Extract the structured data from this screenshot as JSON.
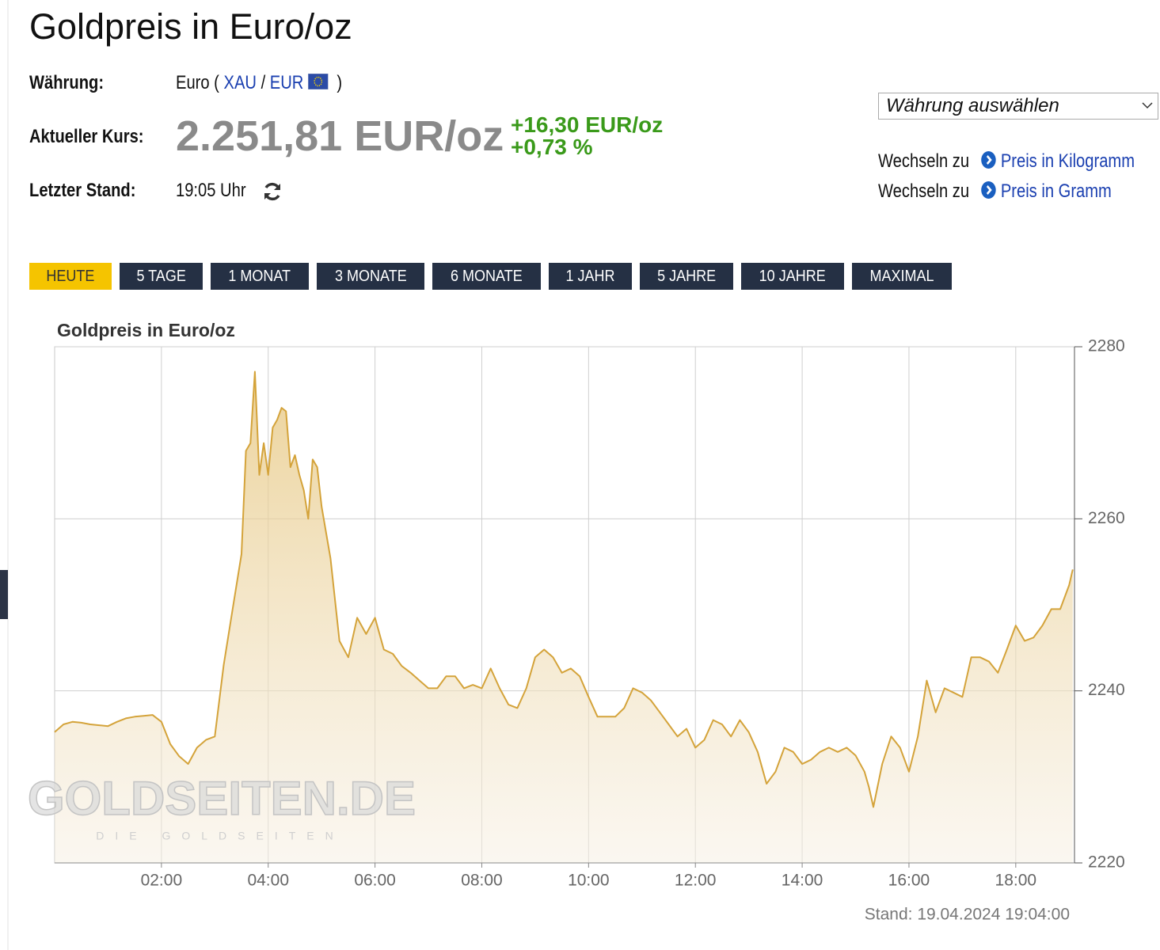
{
  "header": {
    "title": "Goldpreis in Euro/oz"
  },
  "info": {
    "currency_label": "Währung:",
    "currency": {
      "prefix": "Euro (",
      "xau": "XAU",
      "separator": "/",
      "eur": "EUR",
      "suffix": ")"
    },
    "price_label": "Aktueller Kurs:",
    "price": "2.251,81 EUR/oz",
    "change_abs": "+16,30 EUR/oz",
    "change_pct": "+0,73 %",
    "time_label": "Letzter Stand:",
    "time": "19:05 Uhr"
  },
  "currency_select": "Währung auswählen",
  "switch_links": [
    {
      "prefix": "Wechseln zu",
      "link": "Preis in Kilogramm"
    },
    {
      "prefix": "Wechseln zu",
      "link": "Preis in Gramm"
    }
  ],
  "periods": [
    "HEUTE",
    "5 TAGE",
    "1 MONAT",
    "3 MONATE",
    "6 MONATE",
    "1 JAHR",
    "5 JAHRE",
    "10 JAHRE",
    "MAXIMAL"
  ],
  "chart_data": {
    "type": "area",
    "title": "Goldpreis in Euro/oz",
    "color": "#d4a33a",
    "grid": true,
    "x": [
      "00:00",
      "00:10",
      "00:20",
      "00:30",
      "00:40",
      "00:50",
      "01:00",
      "01:10",
      "01:20",
      "01:30",
      "01:40",
      "01:50",
      "02:00",
      "02:10",
      "02:20",
      "02:30",
      "02:40",
      "02:50",
      "03:00",
      "03:10",
      "03:20",
      "03:30",
      "03:35",
      "03:40",
      "03:45",
      "03:50",
      "03:55",
      "04:00",
      "04:05",
      "04:10",
      "04:15",
      "04:20",
      "04:25",
      "04:30",
      "04:35",
      "04:40",
      "04:45",
      "04:50",
      "04:55",
      "05:00",
      "05:10",
      "05:20",
      "05:30",
      "05:40",
      "05:50",
      "06:00",
      "06:10",
      "06:20",
      "06:30",
      "06:40",
      "06:50",
      "07:00",
      "07:10",
      "07:20",
      "07:30",
      "07:40",
      "07:50",
      "08:00",
      "08:10",
      "08:20",
      "08:30",
      "08:40",
      "08:50",
      "09:00",
      "09:10",
      "09:20",
      "09:30",
      "09:40",
      "09:50",
      "10:00",
      "10:10",
      "10:20",
      "10:30",
      "10:40",
      "10:50",
      "11:00",
      "11:10",
      "11:20",
      "11:30",
      "11:40",
      "11:50",
      "12:00",
      "12:10",
      "12:20",
      "12:30",
      "12:40",
      "12:50",
      "13:00",
      "13:10",
      "13:20",
      "13:30",
      "13:40",
      "13:50",
      "14:00",
      "14:10",
      "14:20",
      "14:30",
      "14:40",
      "14:50",
      "15:00",
      "15:10",
      "15:15",
      "15:20",
      "15:30",
      "15:40",
      "15:50",
      "16:00",
      "16:10",
      "16:20",
      "16:30",
      "16:40",
      "16:50",
      "17:00",
      "17:10",
      "17:20",
      "17:30",
      "17:40",
      "17:50",
      "18:00",
      "18:10",
      "18:20",
      "18:30",
      "18:40",
      "18:50",
      "19:00",
      "19:04"
    ],
    "values": [
      2235.2,
      2236.1,
      2236.4,
      2236.3,
      2236.1,
      2236.0,
      2235.9,
      2236.4,
      2236.8,
      2237.0,
      2237.1,
      2237.2,
      2236.4,
      2233.8,
      2232.4,
      2231.5,
      2233.4,
      2234.3,
      2234.7,
      2243.0,
      2249.5,
      2255.9,
      2267.9,
      2268.8,
      2277.1,
      2265.1,
      2268.8,
      2265.1,
      2270.6,
      2271.5,
      2272.9,
      2272.5,
      2266.0,
      2267.4,
      2265.1,
      2263.3,
      2260.0,
      2266.9,
      2266.0,
      2261.4,
      2255.4,
      2245.8,
      2243.9,
      2248.5,
      2246.6,
      2248.5,
      2244.8,
      2244.3,
      2242.9,
      2242.1,
      2241.2,
      2240.3,
      2240.3,
      2241.7,
      2241.7,
      2240.3,
      2240.7,
      2240.3,
      2242.6,
      2240.3,
      2238.4,
      2238.0,
      2240.3,
      2243.9,
      2244.8,
      2243.9,
      2242.1,
      2242.6,
      2241.7,
      2239.3,
      2237.0,
      2237.0,
      2237.0,
      2238.0,
      2240.3,
      2239.8,
      2238.9,
      2237.5,
      2236.1,
      2234.7,
      2235.6,
      2233.4,
      2234.3,
      2236.6,
      2236.1,
      2234.7,
      2236.6,
      2235.2,
      2232.9,
      2229.2,
      2230.6,
      2233.4,
      2232.9,
      2231.5,
      2232.0,
      2232.9,
      2233.4,
      2232.9,
      2233.4,
      2232.5,
      2230.6,
      2228.8,
      2226.5,
      2231.5,
      2234.7,
      2233.4,
      2230.6,
      2234.7,
      2241.2,
      2237.5,
      2240.3,
      2239.8,
      2239.3,
      2243.9,
      2243.9,
      2243.4,
      2242.1,
      2244.8,
      2247.6,
      2245.8,
      2246.2,
      2247.6,
      2249.5,
      2249.5,
      2252.3,
      2254.1
    ],
    "xlim": [
      "00:00",
      "19:06"
    ],
    "xticks": [
      "02:00",
      "04:00",
      "06:00",
      "08:00",
      "10:00",
      "12:00",
      "14:00",
      "16:00",
      "18:00"
    ],
    "ylim": [
      2220,
      2280
    ],
    "yticks": [
      2220,
      2240,
      2260,
      2280
    ],
    "footnote": "Stand: 19.04.2024 19:04:00",
    "watermark": "GOLDSEITEN.DE",
    "watermark_sub": "DIE GOLDSEITEN"
  }
}
